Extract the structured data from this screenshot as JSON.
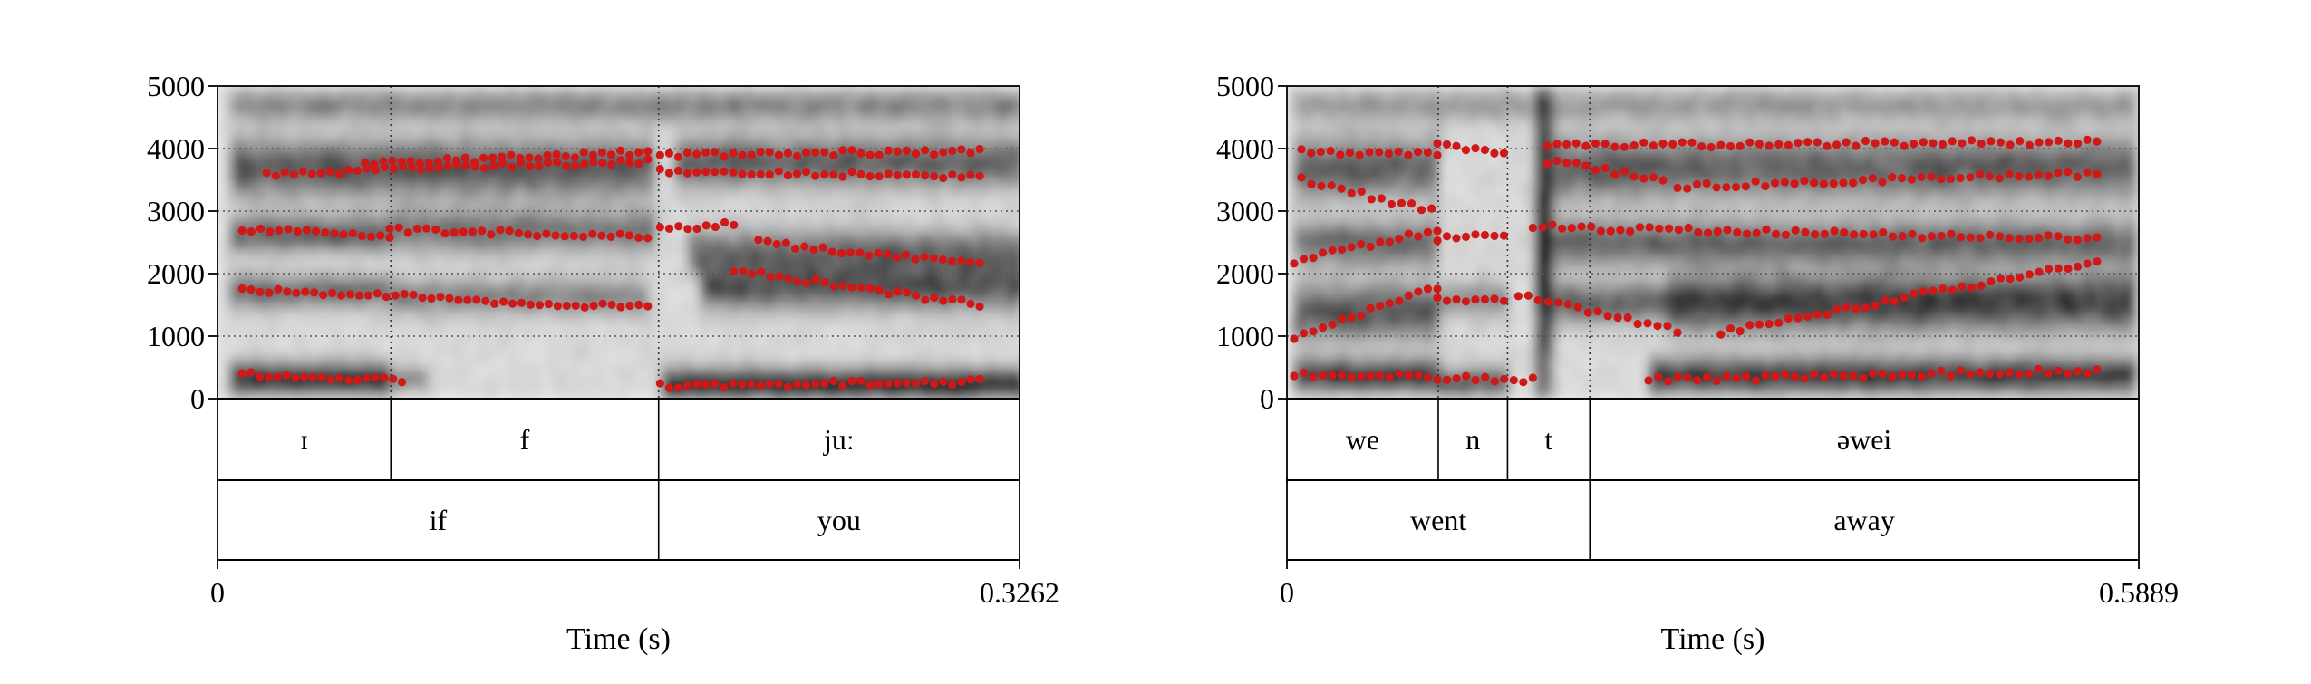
{
  "chart_data": [
    {
      "type": "scatter",
      "subtype": "spectrogram-with-formant-tracks",
      "xlabel": "Time (s)",
      "ylabel": "",
      "xlim": [
        0,
        0.3262
      ],
      "ylim": [
        0,
        5000
      ],
      "x_tick_labels": [
        "0",
        "0.3262"
      ],
      "y_ticks": [
        0,
        1000,
        2000,
        3000,
        4000,
        5000
      ],
      "y_tick_labels": [
        "0",
        "1000",
        "2000",
        "3000",
        "4000",
        "5000"
      ],
      "grid": true,
      "formant_color": "#d01818",
      "spectrogram_bands": [
        {
          "t": [
            0.004,
            0.07
          ],
          "f": 330,
          "w": 230,
          "s": 0.85
        },
        {
          "t": [
            0.07,
            0.085
          ],
          "f": 320,
          "w": 160,
          "s": 0.45
        },
        {
          "t": [
            0.18,
            0.326
          ],
          "f": 240,
          "w": 220,
          "s": 0.95
        },
        {
          "t": [
            0.004,
            0.07
          ],
          "f": 1730,
          "w": 230,
          "s": 0.55
        },
        {
          "t": [
            0.07,
            0.175
          ],
          "f": 1640,
          "w": 260,
          "s": 0.4
        },
        {
          "t": [
            0.195,
            0.326
          ],
          "f": 1800,
          "w": 330,
          "s": 0.6
        },
        {
          "t": [
            0.004,
            0.07
          ],
          "f": 2650,
          "w": 260,
          "s": 0.6
        },
        {
          "t": [
            0.07,
            0.178
          ],
          "f": 2700,
          "w": 320,
          "s": 0.45
        },
        {
          "t": [
            0.19,
            0.326
          ],
          "f": 2350,
          "w": 330,
          "s": 0.5
        },
        {
          "t": [
            0.004,
            0.178
          ],
          "f": 3700,
          "w": 420,
          "s": 0.6
        },
        {
          "t": [
            0.185,
            0.326
          ],
          "f": 3800,
          "w": 380,
          "s": 0.55
        },
        {
          "t": [
            0.004,
            0.326
          ],
          "f": 4700,
          "w": 230,
          "s": 0.4
        }
      ],
      "formant_tracks": [
        {
          "t": [
            0.01,
            0.075
          ],
          "f": [
            380,
            300
          ]
        },
        {
          "t": [
            0.18,
            0.31
          ],
          "f": [
            210,
            270
          ]
        },
        {
          "t": [
            0.01,
            0.175
          ],
          "f": [
            1750,
            1450
          ]
        },
        {
          "t": [
            0.21,
            0.31
          ],
          "f": [
            2050,
            1500
          ]
        },
        {
          "t": [
            0.01,
            0.07
          ],
          "f": [
            2700,
            2600
          ]
        },
        {
          "t": [
            0.07,
            0.175
          ],
          "f": [
            2700,
            2600
          ]
        },
        {
          "t": [
            0.18,
            0.21
          ],
          "f": [
            2700,
            2800
          ]
        },
        {
          "t": [
            0.22,
            0.31
          ],
          "f": [
            2500,
            2150
          ]
        },
        {
          "t": [
            0.02,
            0.175
          ],
          "f": [
            3600,
            3800
          ]
        },
        {
          "t": [
            0.18,
            0.31
          ],
          "f": [
            3650,
            3550
          ]
        },
        {
          "t": [
            0.06,
            0.175
          ],
          "f": [
            3750,
            3950
          ]
        },
        {
          "t": [
            0.18,
            0.31
          ],
          "f": [
            3900,
            3950
          ]
        }
      ],
      "tiers": [
        {
          "intervals": [
            {
              "start": 0,
              "end": 0.0705,
              "label": "ɪ"
            },
            {
              "start": 0.0705,
              "end": 0.1794,
              "label": "f"
            },
            {
              "start": 0.1794,
              "end": 0.3262,
              "label": "juː"
            }
          ]
        },
        {
          "intervals": [
            {
              "start": 0,
              "end": 0.1794,
              "label": "if"
            },
            {
              "start": 0.1794,
              "end": 0.3262,
              "label": "you"
            }
          ]
        }
      ]
    },
    {
      "type": "scatter",
      "subtype": "spectrogram-with-formant-tracks",
      "xlabel": "Time (s)",
      "ylabel": "",
      "xlim": [
        0,
        0.5889
      ],
      "ylim": [
        0,
        5000
      ],
      "x_tick_labels": [
        "0",
        "0.5889"
      ],
      "y_ticks": [
        0,
        1000,
        2000,
        3000,
        4000,
        5000
      ],
      "y_tick_labels": [
        "0",
        "1000",
        "2000",
        "3000",
        "4000",
        "5000"
      ],
      "grid": true,
      "formant_color": "#d01818",
      "spectrogram_bands": [
        {
          "t": [
            0.004,
            0.104
          ],
          "f": 380,
          "w": 230,
          "s": 0.8
        },
        {
          "t": [
            0.104,
            0.152
          ],
          "f": 280,
          "w": 200,
          "s": 0.6
        },
        {
          "t": [
            0.25,
            0.585
          ],
          "f": 380,
          "w": 250,
          "s": 0.8
        },
        {
          "t": [
            0.004,
            0.104
          ],
          "f": 1400,
          "w": 420,
          "s": 0.6
        },
        {
          "t": [
            0.104,
            0.152
          ],
          "f": 1600,
          "w": 260,
          "s": 0.35
        },
        {
          "t": [
            0.18,
            0.26
          ],
          "f": 1550,
          "w": 300,
          "s": 0.55
        },
        {
          "t": [
            0.26,
            0.585
          ],
          "f": 1550,
          "w": 420,
          "s": 0.75
        },
        {
          "t": [
            0.004,
            0.104
          ],
          "f": 2500,
          "w": 320,
          "s": 0.5
        },
        {
          "t": [
            0.18,
            0.585
          ],
          "f": 2500,
          "w": 320,
          "s": 0.55
        },
        {
          "t": [
            0.004,
            0.104
          ],
          "f": 3700,
          "w": 450,
          "s": 0.55
        },
        {
          "t": [
            0.18,
            0.585
          ],
          "f": 3700,
          "w": 450,
          "s": 0.55
        },
        {
          "t": [
            0.004,
            0.585
          ],
          "f": 4700,
          "w": 230,
          "s": 0.3
        },
        {
          "t": [
            0.17,
            0.182
          ],
          "f": 2500,
          "w": 2500,
          "s": 0.9
        }
      ],
      "formant_tracks": [
        {
          "t": [
            0.005,
            0.17
          ],
          "f": [
            400,
            300
          ]
        },
        {
          "t": [
            0.25,
            0.56
          ],
          "f": [
            300,
            450
          ]
        },
        {
          "t": [
            0.005,
            0.104
          ],
          "f": [
            950,
            1800
          ]
        },
        {
          "t": [
            0.104,
            0.15
          ],
          "f": [
            1600,
            1550
          ]
        },
        {
          "t": [
            0.16,
            0.27
          ],
          "f": [
            1650,
            1100
          ]
        },
        {
          "t": [
            0.3,
            0.56
          ],
          "f": [
            1050,
            2200
          ]
        },
        {
          "t": [
            0.005,
            0.104
          ],
          "f": [
            2200,
            2700
          ]
        },
        {
          "t": [
            0.104,
            0.15
          ],
          "f": [
            2550,
            2650
          ]
        },
        {
          "t": [
            0.17,
            0.56
          ],
          "f": [
            2750,
            2550
          ]
        },
        {
          "t": [
            0.01,
            0.1
          ],
          "f": [
            3500,
            3000
          ]
        },
        {
          "t": [
            0.18,
            0.26
          ],
          "f": [
            3800,
            3500
          ]
        },
        {
          "t": [
            0.27,
            0.56
          ],
          "f": [
            3400,
            3600
          ]
        },
        {
          "t": [
            0.01,
            0.104
          ],
          "f": [
            3950,
            3900
          ]
        },
        {
          "t": [
            0.104,
            0.15
          ],
          "f": [
            4050,
            3900
          ]
        },
        {
          "t": [
            0.18,
            0.56
          ],
          "f": [
            4050,
            4100
          ]
        }
      ],
      "tiers": [
        {
          "intervals": [
            {
              "start": 0,
              "end": 0.1046,
              "label": "we"
            },
            {
              "start": 0.1046,
              "end": 0.1525,
              "label": "n"
            },
            {
              "start": 0.1525,
              "end": 0.2094,
              "label": "t"
            },
            {
              "start": 0.2094,
              "end": 0.5889,
              "label": "əwei"
            }
          ]
        },
        {
          "intervals": [
            {
              "start": 0,
              "end": 0.2094,
              "label": "went"
            },
            {
              "start": 0.2094,
              "end": 0.5889,
              "label": "away"
            }
          ]
        }
      ]
    }
  ]
}
